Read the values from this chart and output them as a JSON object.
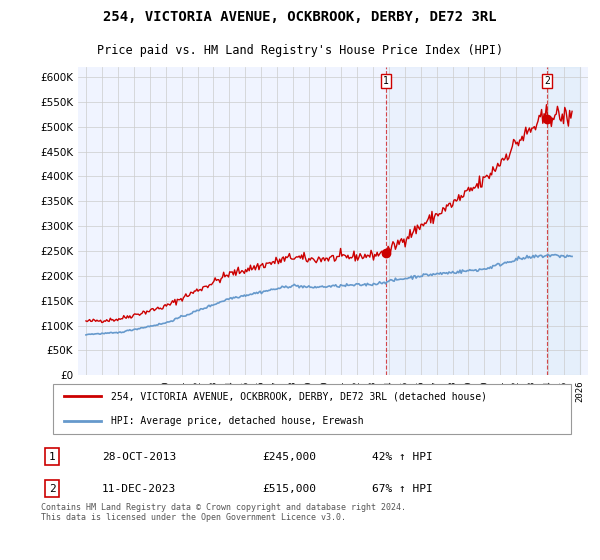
{
  "title": "254, VICTORIA AVENUE, OCKBROOK, DERBY, DE72 3RL",
  "subtitle": "Price paid vs. HM Land Registry's House Price Index (HPI)",
  "legend_line1": "254, VICTORIA AVENUE, OCKBROOK, DERBY, DE72 3RL (detached house)",
  "legend_line2": "HPI: Average price, detached house, Erewash",
  "annotation1_label": "1",
  "annotation1_date": "28-OCT-2013",
  "annotation1_price": "£245,000",
  "annotation1_hpi": "42% ↑ HPI",
  "annotation2_label": "2",
  "annotation2_date": "11-DEC-2023",
  "annotation2_price": "£515,000",
  "annotation2_hpi": "67% ↑ HPI",
  "footer": "Contains HM Land Registry data © Crown copyright and database right 2024.\nThis data is licensed under the Open Government Licence v3.0.",
  "red_color": "#cc0000",
  "blue_color": "#6699cc",
  "grid_color": "#cccccc",
  "background_color": "#ffffff",
  "plot_bg_color": "#f0f4ff",
  "ylim": [
    0,
    620000
  ],
  "yticks": [
    0,
    50000,
    100000,
    150000,
    200000,
    250000,
    300000,
    350000,
    400000,
    450000,
    500000,
    550000,
    600000
  ],
  "year_start": 1995,
  "year_end": 2026,
  "purchase1_year": 2013.83,
  "purchase1_price": 245000,
  "purchase2_year": 2023.95,
  "purchase2_price": 515000,
  "vline1_year": 2013.83,
  "vline2_year": 2023.95
}
